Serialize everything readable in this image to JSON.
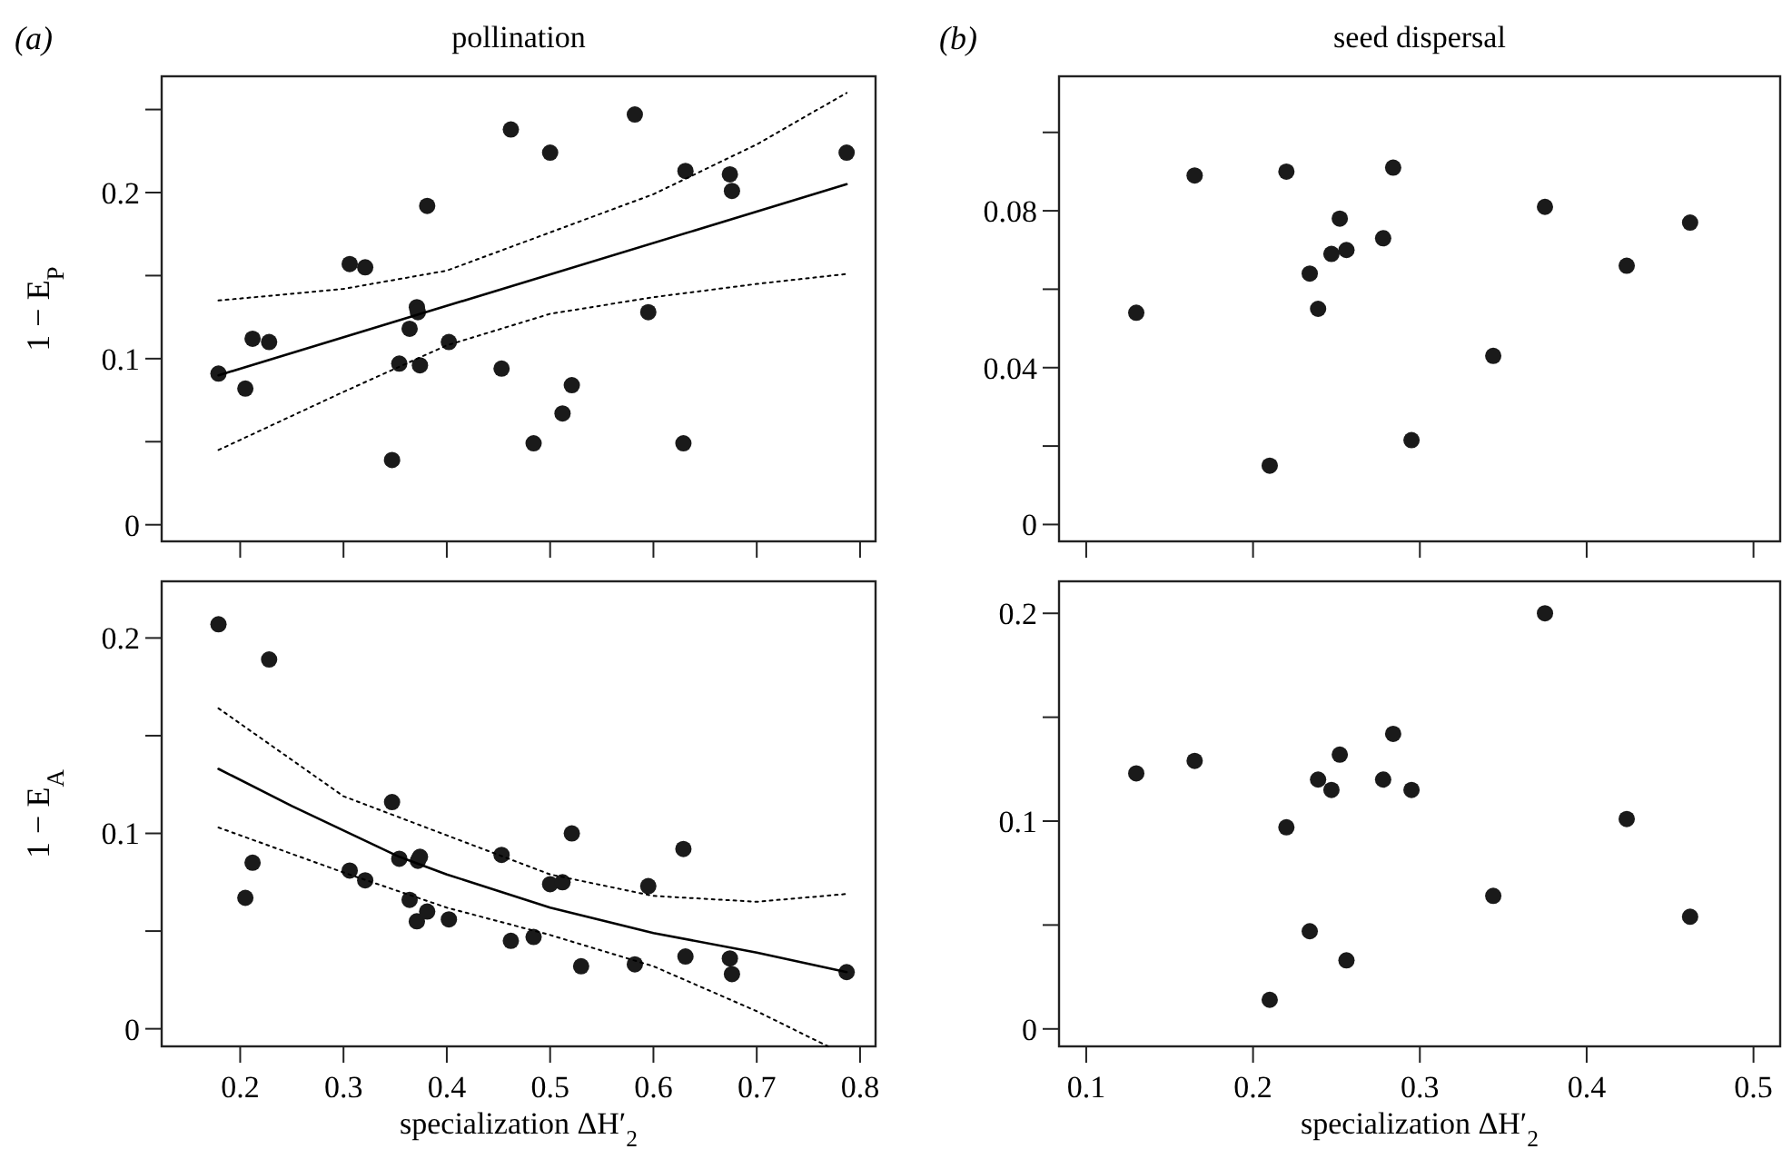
{
  "chart_data": [
    {
      "type": "scatter",
      "title": "pollination",
      "ylabel": "1 − E$_{P}$",
      "annotations": [
        "(a)"
      ],
      "tick_labels": "y",
      "xlim": [
        0.124,
        0.815
      ],
      "xticks": [
        0.2,
        0.3,
        0.4,
        0.5,
        0.6,
        0.7,
        0.8
      ],
      "ylim": [
        -0.01,
        0.27
      ],
      "yticks": [
        0,
        {
          "value": 0.05,
          "label": null
        },
        0.1,
        {
          "value": 0.15,
          "label": null
        },
        0.2,
        {
          "value": 0.25,
          "label": null
        }
      ],
      "grid": false,
      "series": [
        {
          "type": "scatter",
          "marker": "circle",
          "color": "#1a1a1a",
          "x": [
            0.179,
            0.205,
            0.212,
            0.228,
            0.306,
            0.321,
            0.347,
            0.354,
            0.364,
            0.371,
            0.372,
            0.374,
            0.381,
            0.402,
            0.453,
            0.462,
            0.484,
            0.5,
            0.512,
            0.521,
            0.582,
            0.595,
            0.629,
            0.631,
            0.674,
            0.676,
            0.787
          ],
          "values": [
            0.091,
            0.082,
            0.112,
            0.11,
            0.157,
            0.155,
            0.039,
            0.097,
            0.118,
            0.131,
            0.128,
            0.096,
            0.192,
            0.11,
            0.094,
            0.238,
            0.049,
            0.224,
            0.067,
            0.084,
            0.247,
            0.128,
            0.049,
            0.213,
            0.211,
            0.201,
            0.224
          ]
        },
        {
          "type": "line",
          "marker": "none",
          "line_style": "solid",
          "color": "#000000",
          "x": [
            0.179,
            0.787
          ],
          "values": [
            0.09,
            0.205
          ]
        },
        {
          "type": "line",
          "marker": "none",
          "line_style": "dotted",
          "color": "#000000",
          "x": [
            0.179,
            0.3,
            0.4,
            0.5,
            0.6,
            0.7,
            0.787
          ],
          "values": [
            0.135,
            0.142,
            0.153,
            0.176,
            0.199,
            0.229,
            0.26
          ]
        },
        {
          "type": "line",
          "marker": "none",
          "line_style": "dotted",
          "color": "#000000",
          "x": [
            0.179,
            0.3,
            0.4,
            0.5,
            0.6,
            0.7,
            0.787
          ],
          "values": [
            0.045,
            0.08,
            0.108,
            0.127,
            0.137,
            0.145,
            0.151
          ]
        }
      ]
    },
    {
      "type": "scatter",
      "title": "seed dispersal",
      "annotations": [
        "(b)"
      ],
      "tick_labels": "y",
      "xlim": [
        0.0837,
        0.516
      ],
      "xticks": [
        0.1,
        0.2,
        0.3,
        0.4,
        0.5
      ],
      "ylim": [
        -0.0043,
        0.1143
      ],
      "yticks": [
        0,
        {
          "value": 0.02,
          "label": null
        },
        0.04,
        {
          "value": 0.06,
          "label": null
        },
        0.08,
        {
          "value": 0.1,
          "label": null
        }
      ],
      "grid": false,
      "series": [
        {
          "type": "scatter",
          "marker": "circle",
          "color": "#1a1a1a",
          "x": [
            0.13,
            0.165,
            0.21,
            0.22,
            0.234,
            0.239,
            0.247,
            0.252,
            0.256,
            0.278,
            0.284,
            0.295,
            0.344,
            0.375,
            0.424,
            0.462
          ],
          "values": [
            0.054,
            0.089,
            0.015,
            0.09,
            0.064,
            0.055,
            0.069,
            0.078,
            0.07,
            0.073,
            0.091,
            0.0215,
            0.043,
            0.081,
            0.066,
            0.077
          ]
        }
      ]
    },
    {
      "type": "scatter",
      "ylabel": "1 − E$_{A}$",
      "xlabel": "specialization ΔH′$_{2}$",
      "xlim": [
        0.124,
        0.815
      ],
      "xticks": [
        0.2,
        0.3,
        0.4,
        0.5,
        0.6,
        0.7,
        0.8
      ],
      "ylim": [
        -0.009,
        0.229
      ],
      "yticks": [
        0,
        {
          "value": 0.05,
          "label": null
        },
        0.1,
        {
          "value": 0.15,
          "label": null
        },
        0.2
      ],
      "grid": false,
      "series": [
        {
          "type": "scatter",
          "marker": "circle",
          "color": "#1a1a1a",
          "x": [
            0.179,
            0.228,
            0.205,
            0.212,
            0.306,
            0.321,
            0.347,
            0.354,
            0.364,
            0.371,
            0.374,
            0.372,
            0.381,
            0.402,
            0.453,
            0.462,
            0.484,
            0.5,
            0.512,
            0.521,
            0.53,
            0.582,
            0.595,
            0.631,
            0.629,
            0.674,
            0.676,
            0.787
          ],
          "values": [
            0.207,
            0.189,
            0.067,
            0.085,
            0.081,
            0.076,
            0.116,
            0.087,
            0.066,
            0.055,
            0.088,
            0.086,
            0.06,
            0.056,
            0.089,
            0.045,
            0.047,
            0.074,
            0.075,
            0.1,
            0.032,
            0.033,
            0.073,
            0.037,
            0.092,
            0.036,
            0.028,
            0.029
          ]
        },
        {
          "type": "line",
          "marker": "none",
          "line_style": "solid",
          "color": "#000000",
          "x": [
            0.179,
            0.25,
            0.354,
            0.4,
            0.5,
            0.6,
            0.7,
            0.787
          ],
          "values": [
            0.133,
            0.114,
            0.088,
            0.079,
            0.062,
            0.049,
            0.039,
            0.029
          ]
        },
        {
          "type": "line",
          "marker": "none",
          "line_style": "dotted",
          "color": "#000000",
          "x": [
            0.179,
            0.3,
            0.4,
            0.5,
            0.6,
            0.7,
            0.787
          ],
          "values": [
            0.164,
            0.119,
            0.099,
            0.079,
            0.068,
            0.065,
            0.069
          ]
        },
        {
          "type": "line",
          "marker": "none",
          "line_style": "dotted",
          "color": "#000000",
          "x": [
            0.179,
            0.3,
            0.4,
            0.5,
            0.6,
            0.7,
            0.769
          ],
          "values": [
            0.103,
            0.08,
            0.062,
            0.048,
            0.032,
            0.009,
            -0.009
          ]
        }
      ]
    },
    {
      "type": "scatter",
      "xlabel": "specialization ΔH′$_{2}$",
      "xlim": [
        0.0837,
        0.516
      ],
      "xticks": [
        0.1,
        0.2,
        0.3,
        0.4,
        0.5
      ],
      "ylim": [
        -0.0084,
        0.2154
      ],
      "yticks": [
        0,
        {
          "value": 0.05,
          "label": null
        },
        0.1,
        {
          "value": 0.15,
          "label": null
        },
        0.2
      ],
      "grid": false,
      "series": [
        {
          "type": "scatter",
          "marker": "circle",
          "color": "#1a1a1a",
          "x": [
            0.13,
            0.165,
            0.21,
            0.22,
            0.234,
            0.239,
            0.247,
            0.252,
            0.256,
            0.278,
            0.284,
            0.295,
            0.344,
            0.375,
            0.424,
            0.462
          ],
          "values": [
            0.123,
            0.129,
            0.014,
            0.097,
            0.047,
            0.12,
            0.115,
            0.132,
            0.033,
            0.12,
            0.142,
            0.115,
            0.064,
            0.2,
            0.101,
            0.054
          ]
        }
      ]
    }
  ]
}
